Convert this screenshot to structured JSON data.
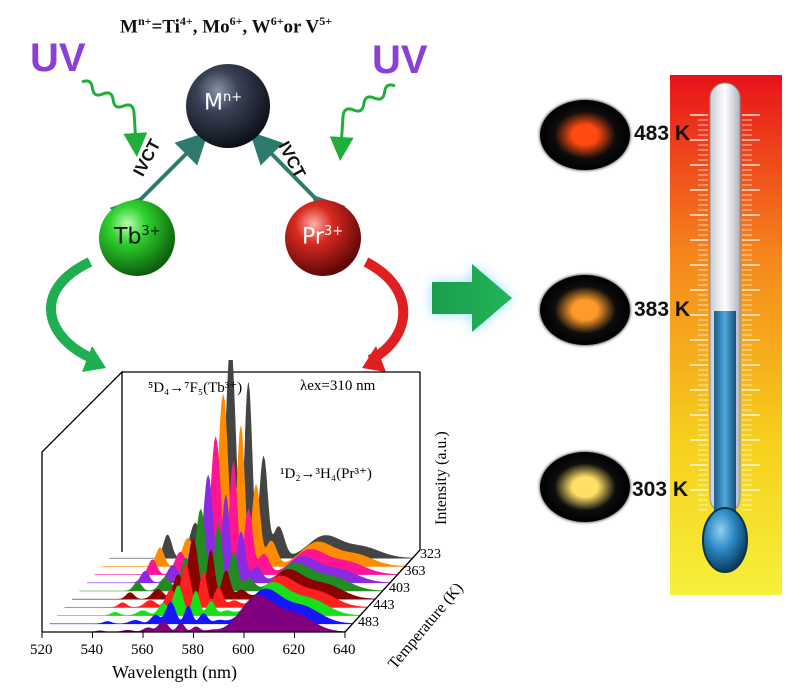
{
  "diagram": {
    "title_base": "M",
    "title_sup1": "n+",
    "title_mid1": "=Ti",
    "title_sup2": "4+",
    "title_mid2": ", Mo",
    "title_sup3": "6+",
    "title_mid3": ", W",
    "title_sup4": "6+",
    "title_mid4": "or V",
    "title_sup5": "5+",
    "uv_left": "UV",
    "uv_right": "UV",
    "metal_base": "M",
    "metal_sup": "n+",
    "tb_base": "Tb",
    "tb_sup": "3+",
    "pr_base": "Pr",
    "pr_sup": "3+",
    "ivct_left": "IVCT",
    "ivct_right": "IVCT"
  },
  "samples": [
    {
      "temp": "483 K",
      "glow": "#ff4a10"
    },
    {
      "temp": "383 K",
      "glow": "#ff9a2a"
    },
    {
      "temp": "303 K",
      "glow": "#ffe066"
    }
  ],
  "chart_data": {
    "type": "area",
    "xlabel": "Wavelength (nm)",
    "ylabel": "Intensity (a.u.)",
    "zlabel": "Temperature (K)",
    "x_ticks": [
      520,
      540,
      560,
      580,
      600,
      620,
      640
    ],
    "z_ticks": [
      323,
      363,
      403,
      443,
      483
    ],
    "annotation_tb": "⁵D₄→⁷F₅(Tb³⁺)",
    "annotation_pr": "¹D₂→³H₄(Pr³⁺)",
    "annotation_ex": "λex=310 nm",
    "series_colors": [
      "#800080",
      "#1515ff",
      "#18e018",
      "#ff2020",
      "#8b0000",
      "#228b22",
      "#8a2be2",
      "#ff1493",
      "#ff8c00",
      "#444444"
    ],
    "series": [
      {
        "tb": 0.05,
        "pr": 0.42
      },
      {
        "tb": 0.1,
        "pr": 0.4
      },
      {
        "tb": 0.14,
        "pr": 0.38
      },
      {
        "tb": 0.2,
        "pr": 0.36
      },
      {
        "tb": 0.28,
        "pr": 0.34
      },
      {
        "tb": 0.38,
        "pr": 0.32
      },
      {
        "tb": 0.5,
        "pr": 0.3
      },
      {
        "tb": 0.64,
        "pr": 0.29
      },
      {
        "tb": 0.8,
        "pr": 0.28
      },
      {
        "tb": 1.0,
        "pr": 0.26
      }
    ]
  }
}
